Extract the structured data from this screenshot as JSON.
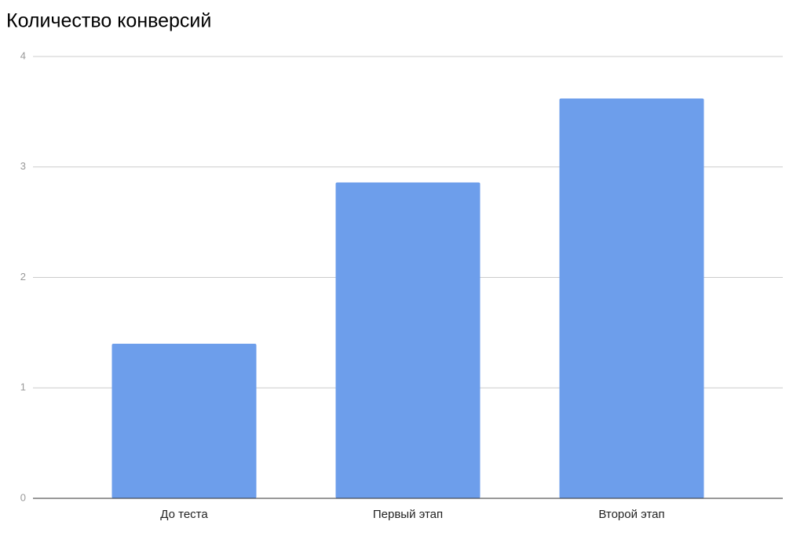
{
  "chart_data": {
    "type": "bar",
    "title": "Количество конверсий",
    "categories": [
      "До теста",
      "Первый этап",
      "Второй этап"
    ],
    "values": [
      1.4,
      2.86,
      3.62
    ],
    "color": "#6d9eeb",
    "ylim": [
      0,
      4
    ],
    "yticks": [
      0,
      1,
      2,
      3,
      4
    ],
    "grid": true
  }
}
